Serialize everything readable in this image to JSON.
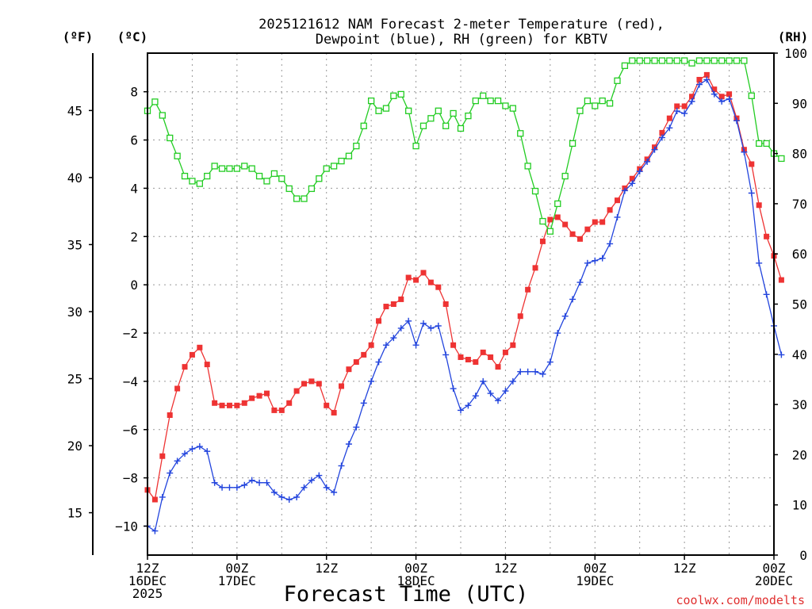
{
  "chart_data": {
    "type": "line",
    "title": "2025121612 NAM Forecast 2-meter Temperature (red),",
    "subtitle": "Dewpoint (blue), RH (green) for KBTV",
    "xlabel": "Forecast Time (UTC)",
    "units": {
      "fahrenheit": "(ºF)",
      "celsius": "(ºC)",
      "rh": "(RH)"
    },
    "watermark": "coolwx.com/modelts",
    "x_hours_range": [
      0,
      84
    ],
    "ylim_celsius": [
      -11.2,
      9.6
    ],
    "ylim_rh": [
      0,
      100
    ],
    "ylim_fahrenheit_ticks": [
      15,
      20,
      25,
      30,
      35,
      40,
      45
    ],
    "yticks_celsius": [
      -10,
      -8,
      -6,
      -4,
      -2,
      0,
      2,
      4,
      6,
      8
    ],
    "yticks_rh": [
      0,
      10,
      20,
      30,
      40,
      50,
      60,
      70,
      80,
      90,
      100
    ],
    "xticks": [
      {
        "hour": 0,
        "lines": [
          "12Z",
          "16DEC",
          "2025"
        ]
      },
      {
        "hour": 12,
        "lines": [
          "00Z",
          "17DEC"
        ]
      },
      {
        "hour": 24,
        "lines": [
          "12Z"
        ]
      },
      {
        "hour": 36,
        "lines": [
          "00Z",
          "18DEC"
        ]
      },
      {
        "hour": 48,
        "lines": [
          "12Z"
        ]
      },
      {
        "hour": 60,
        "lines": [
          "00Z",
          "19DEC"
        ]
      },
      {
        "hour": 72,
        "lines": [
          "12Z"
        ]
      },
      {
        "hour": 84,
        "lines": [
          "00Z",
          "20DEC"
        ]
      }
    ],
    "series": [
      {
        "name": "2-meter Temperature",
        "color": "#ee3333",
        "marker": "filled-square",
        "axis": "celsius",
        "points": [
          [
            0,
            -8.5
          ],
          [
            1,
            -8.9
          ],
          [
            2,
            -7.1
          ],
          [
            3,
            -5.4
          ],
          [
            4,
            -4.3
          ],
          [
            5,
            -3.4
          ],
          [
            6,
            -2.9
          ],
          [
            7,
            -2.6
          ],
          [
            8,
            -3.3
          ],
          [
            9,
            -4.9
          ],
          [
            10,
            -5.0
          ],
          [
            11,
            -5.0
          ],
          [
            12,
            -5.0
          ],
          [
            13,
            -4.9
          ],
          [
            14,
            -4.7
          ],
          [
            15,
            -4.6
          ],
          [
            16,
            -4.5
          ],
          [
            17,
            -5.2
          ],
          [
            18,
            -5.2
          ],
          [
            19,
            -4.9
          ],
          [
            20,
            -4.4
          ],
          [
            21,
            -4.1
          ],
          [
            22,
            -4.0
          ],
          [
            23,
            -4.1
          ],
          [
            24,
            -5.0
          ],
          [
            25,
            -5.3
          ],
          [
            26,
            -4.2
          ],
          [
            27,
            -3.5
          ],
          [
            28,
            -3.2
          ],
          [
            29,
            -2.9
          ],
          [
            30,
            -2.5
          ],
          [
            31,
            -1.5
          ],
          [
            32,
            -0.9
          ],
          [
            33,
            -0.8
          ],
          [
            34,
            -0.6
          ],
          [
            35,
            0.3
          ],
          [
            36,
            0.2
          ],
          [
            37,
            0.5
          ],
          [
            38,
            0.1
          ],
          [
            39,
            -0.1
          ],
          [
            40,
            -0.8
          ],
          [
            41,
            -2.5
          ],
          [
            42,
            -3.0
          ],
          [
            43,
            -3.1
          ],
          [
            44,
            -3.2
          ],
          [
            45,
            -2.8
          ],
          [
            46,
            -3.0
          ],
          [
            47,
            -3.4
          ],
          [
            48,
            -2.8
          ],
          [
            49,
            -2.5
          ],
          [
            50,
            -1.3
          ],
          [
            51,
            -0.2
          ],
          [
            52,
            0.7
          ],
          [
            53,
            1.8
          ],
          [
            54,
            2.7
          ],
          [
            55,
            2.8
          ],
          [
            56,
            2.5
          ],
          [
            57,
            2.1
          ],
          [
            58,
            1.9
          ],
          [
            59,
            2.3
          ],
          [
            60,
            2.6
          ],
          [
            61,
            2.6
          ],
          [
            62,
            3.1
          ],
          [
            63,
            3.5
          ],
          [
            64,
            4.0
          ],
          [
            65,
            4.4
          ],
          [
            66,
            4.8
          ],
          [
            67,
            5.2
          ],
          [
            68,
            5.7
          ],
          [
            69,
            6.3
          ],
          [
            70,
            6.9
          ],
          [
            71,
            7.4
          ],
          [
            72,
            7.4
          ],
          [
            73,
            7.8
          ],
          [
            74,
            8.5
          ],
          [
            75,
            8.7
          ],
          [
            76,
            8.1
          ],
          [
            77,
            7.8
          ],
          [
            78,
            7.9
          ],
          [
            79,
            6.9
          ],
          [
            80,
            5.6
          ],
          [
            81,
            5.0
          ],
          [
            82,
            3.3
          ],
          [
            83,
            2.0
          ],
          [
            84,
            1.2
          ],
          [
            85,
            0.2
          ]
        ]
      },
      {
        "name": "Dewpoint",
        "color": "#2244dd",
        "marker": "plus",
        "axis": "celsius",
        "points": [
          [
            0,
            -10.0
          ],
          [
            1,
            -10.2
          ],
          [
            2,
            -8.8
          ],
          [
            3,
            -7.8
          ],
          [
            4,
            -7.3
          ],
          [
            5,
            -7.0
          ],
          [
            6,
            -6.8
          ],
          [
            7,
            -6.7
          ],
          [
            8,
            -6.9
          ],
          [
            9,
            -8.2
          ],
          [
            10,
            -8.4
          ],
          [
            11,
            -8.4
          ],
          [
            12,
            -8.4
          ],
          [
            13,
            -8.3
          ],
          [
            14,
            -8.1
          ],
          [
            15,
            -8.2
          ],
          [
            16,
            -8.2
          ],
          [
            17,
            -8.6
          ],
          [
            18,
            -8.8
          ],
          [
            19,
            -8.9
          ],
          [
            20,
            -8.8
          ],
          [
            21,
            -8.4
          ],
          [
            22,
            -8.1
          ],
          [
            23,
            -7.9
          ],
          [
            24,
            -8.4
          ],
          [
            25,
            -8.6
          ],
          [
            26,
            -7.5
          ],
          [
            27,
            -6.6
          ],
          [
            28,
            -5.9
          ],
          [
            29,
            -4.9
          ],
          [
            30,
            -4.0
          ],
          [
            31,
            -3.2
          ],
          [
            32,
            -2.5
          ],
          [
            33,
            -2.2
          ],
          [
            34,
            -1.8
          ],
          [
            35,
            -1.5
          ],
          [
            36,
            -2.5
          ],
          [
            37,
            -1.6
          ],
          [
            38,
            -1.8
          ],
          [
            39,
            -1.7
          ],
          [
            40,
            -2.9
          ],
          [
            41,
            -4.3
          ],
          [
            42,
            -5.2
          ],
          [
            43,
            -5.0
          ],
          [
            44,
            -4.6
          ],
          [
            45,
            -4.0
          ],
          [
            46,
            -4.5
          ],
          [
            47,
            -4.8
          ],
          [
            48,
            -4.4
          ],
          [
            49,
            -4.0
          ],
          [
            50,
            -3.6
          ],
          [
            51,
            -3.6
          ],
          [
            52,
            -3.6
          ],
          [
            53,
            -3.7
          ],
          [
            54,
            -3.2
          ],
          [
            55,
            -2.0
          ],
          [
            56,
            -1.3
          ],
          [
            57,
            -0.6
          ],
          [
            58,
            0.1
          ],
          [
            59,
            0.9
          ],
          [
            60,
            1.0
          ],
          [
            61,
            1.1
          ],
          [
            62,
            1.7
          ],
          [
            63,
            2.8
          ],
          [
            64,
            3.9
          ],
          [
            65,
            4.2
          ],
          [
            66,
            4.7
          ],
          [
            67,
            5.1
          ],
          [
            68,
            5.6
          ],
          [
            69,
            6.1
          ],
          [
            70,
            6.5
          ],
          [
            71,
            7.2
          ],
          [
            72,
            7.1
          ],
          [
            73,
            7.6
          ],
          [
            74,
            8.3
          ],
          [
            75,
            8.5
          ],
          [
            76,
            7.9
          ],
          [
            77,
            7.6
          ],
          [
            78,
            7.7
          ],
          [
            79,
            6.8
          ],
          [
            80,
            5.5
          ],
          [
            81,
            3.8
          ],
          [
            82,
            0.9
          ],
          [
            83,
            -0.4
          ],
          [
            84,
            -1.7
          ],
          [
            85,
            -2.9
          ]
        ]
      },
      {
        "name": "RH",
        "color": "#22cc22",
        "marker": "open-square",
        "axis": "rh",
        "points": [
          [
            0,
            88.5
          ],
          [
            1,
            90.3
          ],
          [
            2,
            87.6
          ],
          [
            3,
            83.1
          ],
          [
            4,
            79.5
          ],
          [
            5,
            75.5
          ],
          [
            6,
            74.5
          ],
          [
            7,
            74.0
          ],
          [
            8,
            75.5
          ],
          [
            9,
            77.5
          ],
          [
            10,
            77.0
          ],
          [
            11,
            77.0
          ],
          [
            12,
            77.0
          ],
          [
            13,
            77.5
          ],
          [
            14,
            77.0
          ],
          [
            15,
            75.5
          ],
          [
            16,
            74.5
          ],
          [
            17,
            76.0
          ],
          [
            18,
            75.0
          ],
          [
            19,
            73.0
          ],
          [
            20,
            71.0
          ],
          [
            21,
            71.0
          ],
          [
            22,
            73.0
          ],
          [
            23,
            75.0
          ],
          [
            24,
            77.0
          ],
          [
            25,
            77.5
          ],
          [
            26,
            78.5
          ],
          [
            27,
            79.5
          ],
          [
            28,
            81.5
          ],
          [
            29,
            85.5
          ],
          [
            30,
            90.5
          ],
          [
            31,
            88.5
          ],
          [
            32,
            89.0
          ],
          [
            33,
            91.5
          ],
          [
            34,
            91.8
          ],
          [
            35,
            88.5
          ],
          [
            36,
            81.5
          ],
          [
            37,
            85.5
          ],
          [
            38,
            87.0
          ],
          [
            39,
            88.5
          ],
          [
            40,
            85.5
          ],
          [
            41,
            88.0
          ],
          [
            42,
            85.0
          ],
          [
            43,
            87.5
          ],
          [
            44,
            90.5
          ],
          [
            45,
            91.5
          ],
          [
            46,
            90.5
          ],
          [
            47,
            90.5
          ],
          [
            48,
            89.5
          ],
          [
            49,
            89.0
          ],
          [
            50,
            84.0
          ],
          [
            51,
            77.5
          ],
          [
            52,
            72.5
          ],
          [
            53,
            66.5
          ],
          [
            54,
            64.5
          ],
          [
            55,
            70.0
          ],
          [
            56,
            75.5
          ],
          [
            57,
            82.0
          ],
          [
            58,
            88.5
          ],
          [
            59,
            90.5
          ],
          [
            60,
            89.5
          ],
          [
            61,
            90.5
          ],
          [
            62,
            90.0
          ],
          [
            63,
            94.5
          ],
          [
            64,
            97.5
          ],
          [
            65,
            98.5
          ],
          [
            66,
            98.5
          ],
          [
            67,
            98.5
          ],
          [
            68,
            98.5
          ],
          [
            69,
            98.5
          ],
          [
            70,
            98.5
          ],
          [
            71,
            98.5
          ],
          [
            72,
            98.5
          ],
          [
            73,
            98.0
          ],
          [
            74,
            98.5
          ],
          [
            75,
            98.5
          ],
          [
            76,
            98.5
          ],
          [
            77,
            98.5
          ],
          [
            78,
            98.5
          ],
          [
            79,
            98.5
          ],
          [
            80,
            98.5
          ],
          [
            81,
            91.5
          ],
          [
            82,
            82.0
          ],
          [
            83,
            82.0
          ],
          [
            84,
            80.0
          ],
          [
            85,
            79.0
          ]
        ]
      }
    ]
  }
}
